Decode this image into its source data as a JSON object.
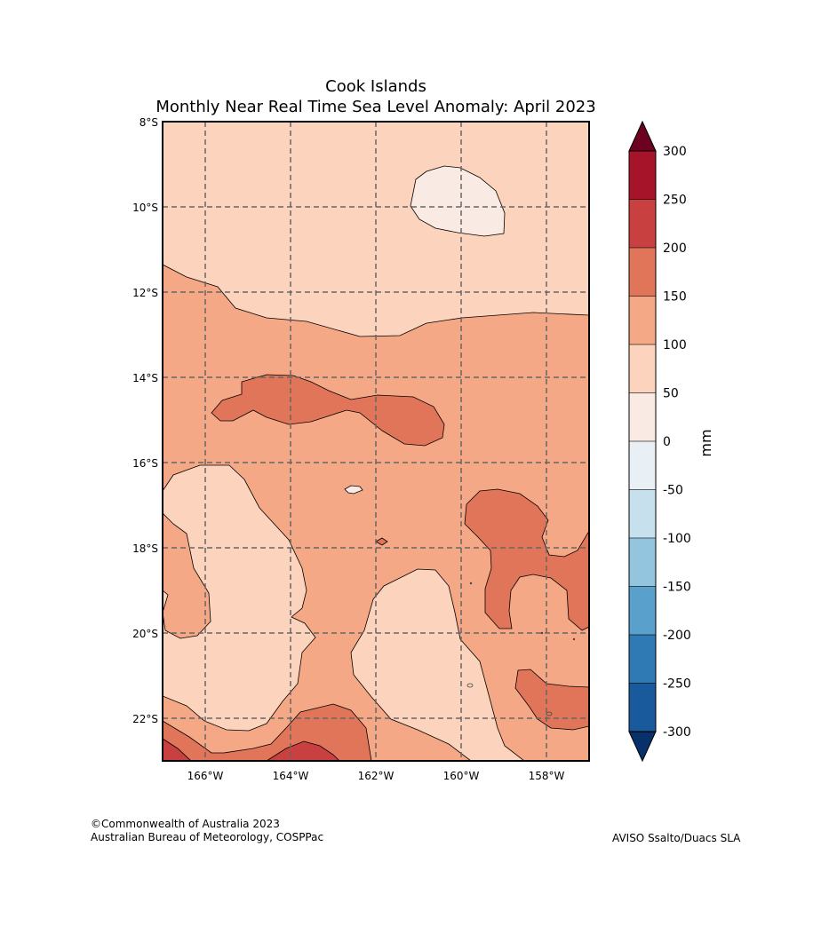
{
  "title": "Cook Islands",
  "subtitle": "Monthly Near Real Time Sea Level Anomaly: April 2023",
  "lat_labels": [
    "8°S",
    "10°S",
    "12°S",
    "14°S",
    "16°S",
    "18°S",
    "20°S",
    "22°S"
  ],
  "lon_labels": [
    "166°W",
    "164°W",
    "162°W",
    "160°W",
    "158°W"
  ],
  "colorbar": {
    "unit_label": "mm",
    "tick_labels": [
      "300",
      "250",
      "200",
      "150",
      "100",
      "50",
      "0",
      "-50",
      "-100",
      "-150",
      "-200",
      "-250",
      "-300"
    ],
    "band_colors": [
      "#a51429",
      "#c8403f",
      "#e07559",
      "#f5a886",
      "#fcd3bc",
      "#f9ebe3",
      "#e8f0f5",
      "#c6e0ee",
      "#93c5de",
      "#5aa0cd",
      "#2f79b5",
      "#185a9c"
    ],
    "over_color": "#6d0120",
    "under_color": "#08306b"
  },
  "footer": {
    "copyright": "©Commonwealth of Australia 2023",
    "agency": "Australian Bureau of Meteorology, COSPPac",
    "source": "AVISO Ssalto/Duacs SLA"
  }
}
